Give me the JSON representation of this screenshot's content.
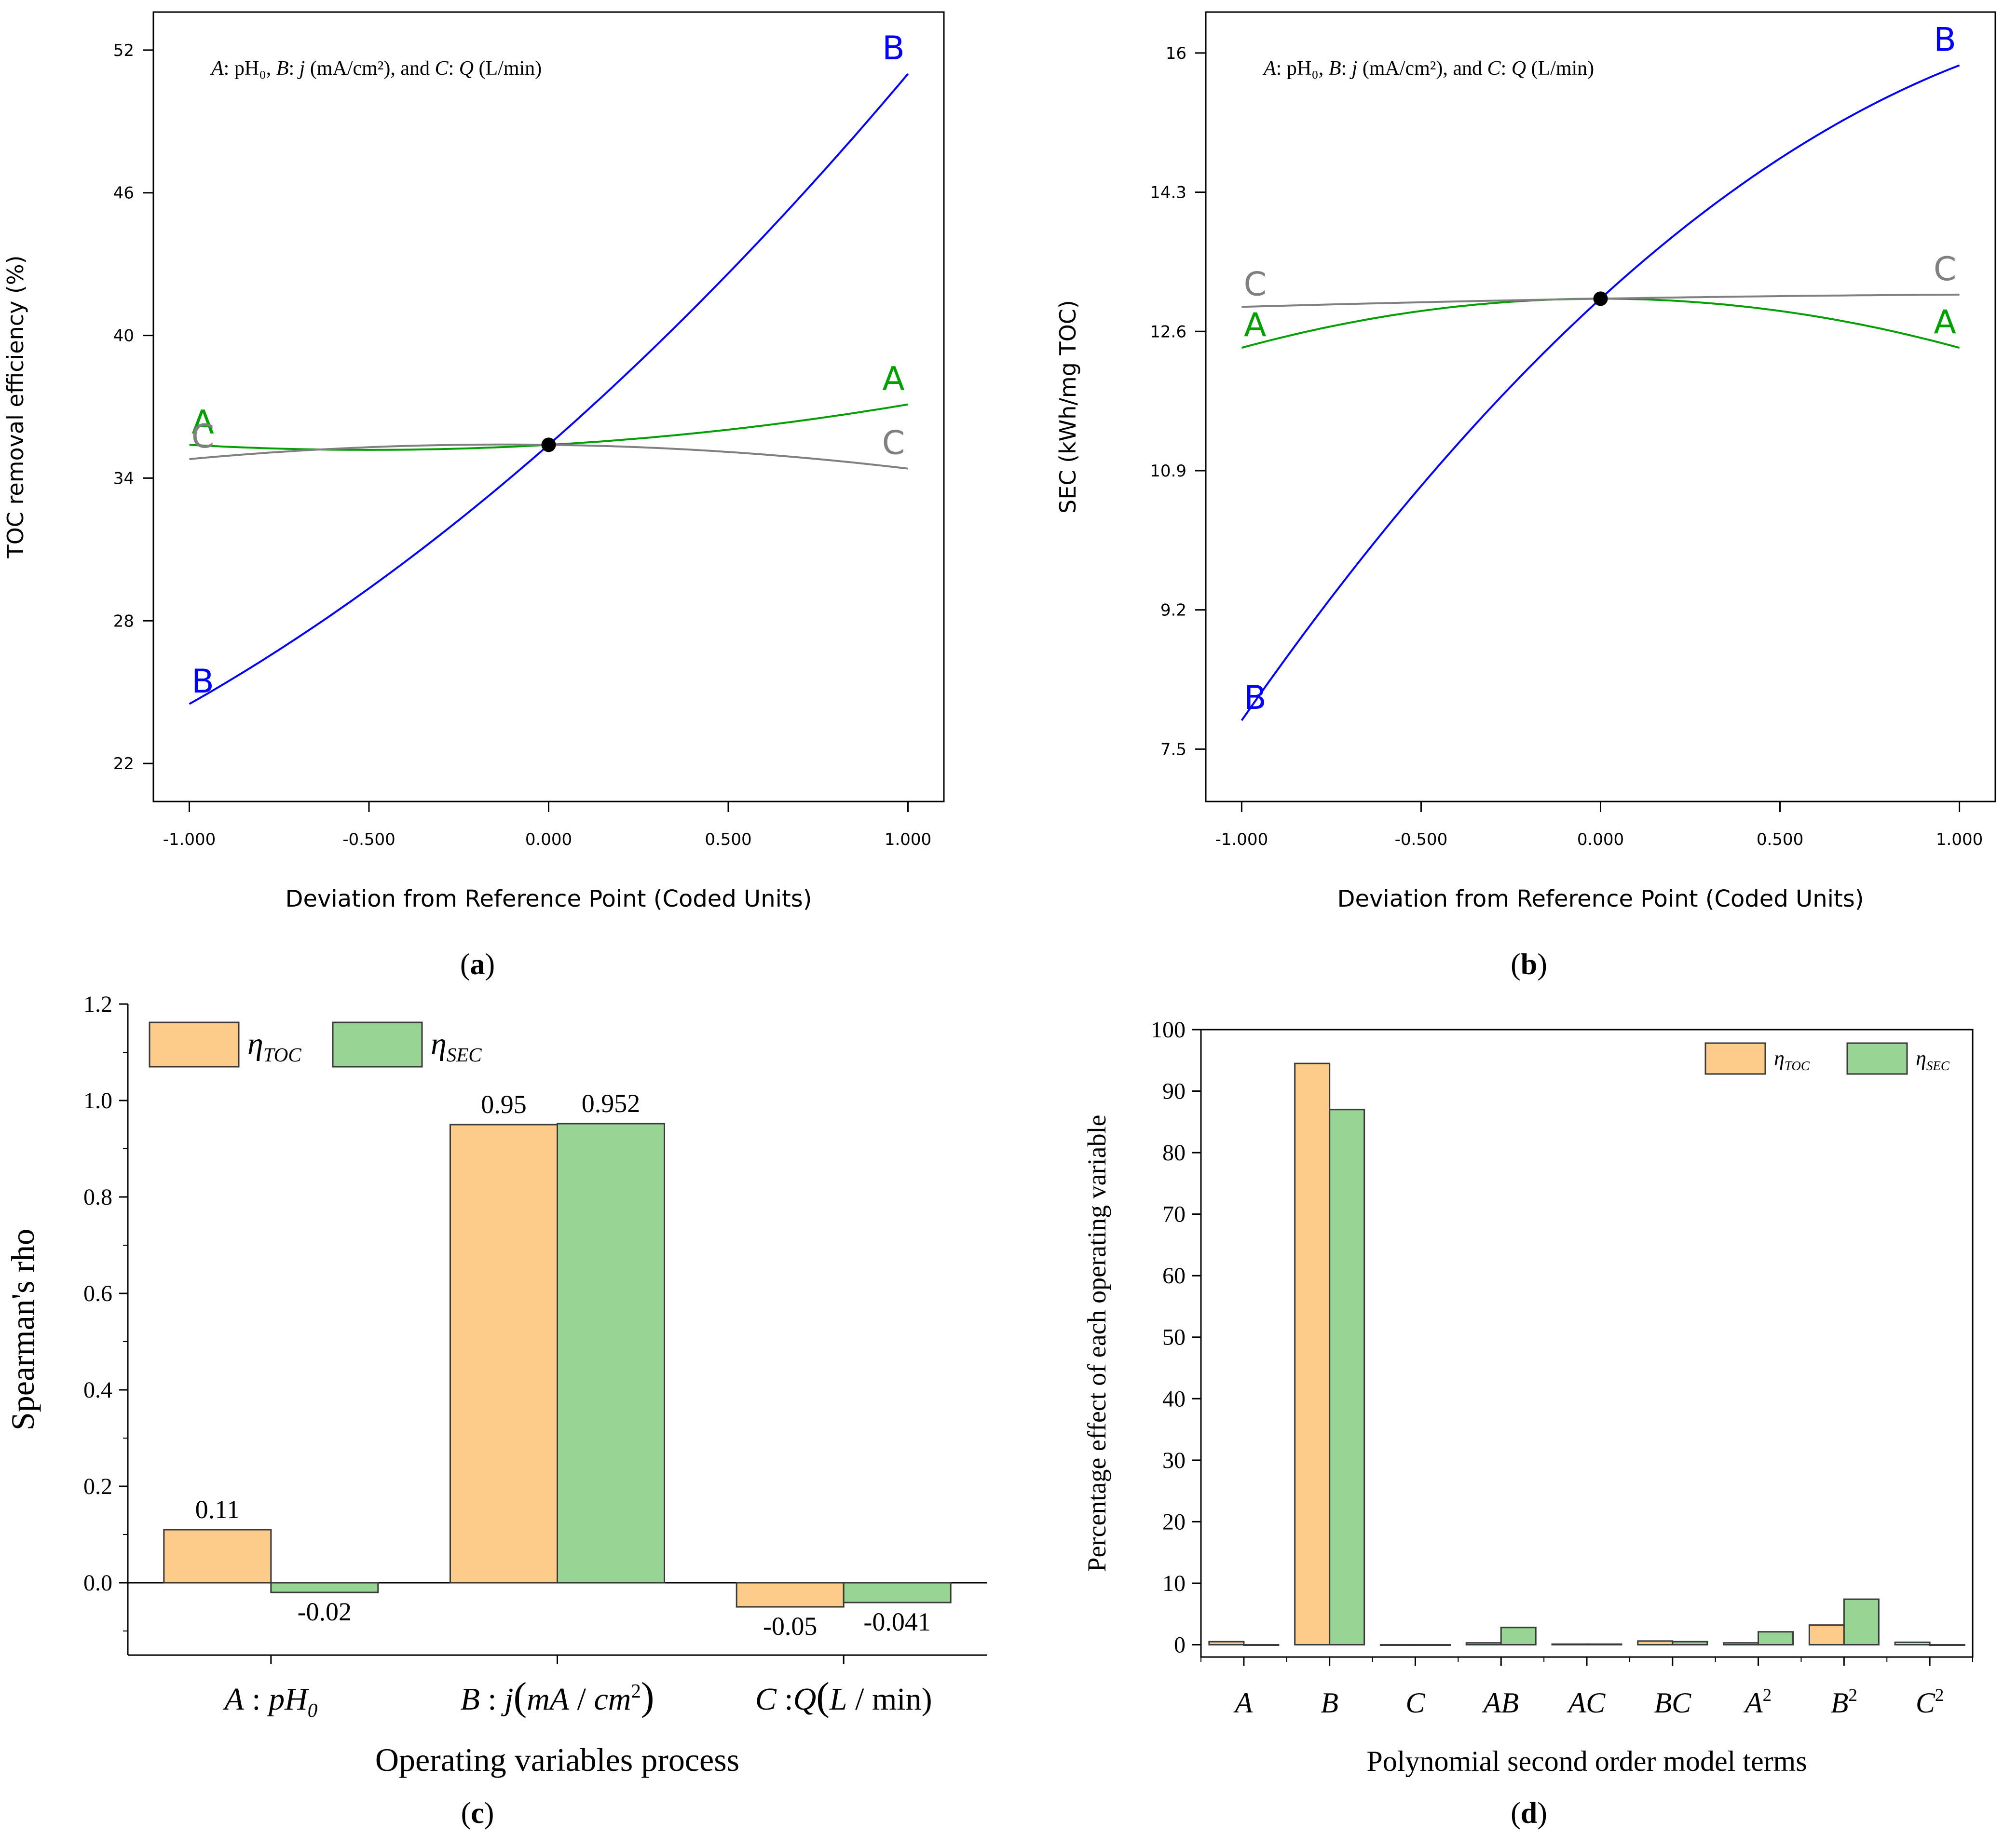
{
  "panels": {
    "a": {
      "label": "a",
      "chart_data": {
        "type": "line",
        "title": "",
        "annotation_parts": [
          "A",
          ": pH₀, ",
          "B",
          ": ",
          "j",
          " (mA/cm²), and ",
          "C",
          ": ",
          "Q",
          " (L/min)"
        ],
        "xlabel": "Deviation from Reference Point (Coded Units)",
        "ylabel": "TOC removal efficiency (%)",
        "xlim": [
          -1.1,
          1.1
        ],
        "ylim": [
          20.4,
          53.6
        ],
        "xticks": [
          -1.0,
          -0.5,
          0.0,
          0.5,
          1.0
        ],
        "xtick_labels": [
          "-1.000",
          "-0.500",
          "0.000",
          "0.500",
          "1.000"
        ],
        "yticks": [
          22,
          28,
          34,
          40,
          46,
          52
        ],
        "ytick_labels": [
          "22",
          "28",
          "34",
          "40",
          "46",
          "52"
        ],
        "reference_point": [
          0.0,
          35.4
        ],
        "series": [
          {
            "name": "A",
            "color": "#00a000",
            "x": [
              -1.0,
              -0.5,
              0.0,
              0.5,
              1.0
            ],
            "y": [
              35.4,
              35.1,
              35.4,
              36.0,
              37.1
            ]
          },
          {
            "name": "B",
            "color": "#0000ff",
            "x": [
              -1.0,
              -0.5,
              0.0,
              0.5,
              1.0
            ],
            "y": [
              24.5,
              29.4,
              35.4,
              42.6,
              51.0
            ]
          },
          {
            "name": "C",
            "color": "#808080",
            "x": [
              -1.0,
              -0.5,
              0.0,
              0.5,
              1.0
            ],
            "y": [
              34.8,
              35.3,
              35.4,
              35.2,
              34.4
            ]
          }
        ]
      }
    },
    "b": {
      "label": "b",
      "chart_data": {
        "type": "line",
        "title": "",
        "annotation_parts": [
          "A",
          ": pH₀, ",
          "B",
          ": ",
          "j",
          " (mA/cm²), and ",
          "C",
          ": ",
          "Q",
          " (L/min)"
        ],
        "xlabel": "Deviation from Reference Point (Coded Units)",
        "ylabel": "SEC (kWh/mg TOC)",
        "xlim": [
          -1.1,
          1.1
        ],
        "ylim": [
          6.86,
          16.5
        ],
        "xticks": [
          -1.0,
          -0.5,
          0.0,
          0.5,
          1.0
        ],
        "xtick_labels": [
          "-1.000",
          "-0.500",
          "0.000",
          "0.500",
          "1.000"
        ],
        "yticks": [
          7.5,
          9.2,
          10.9,
          12.6,
          14.3,
          16.0
        ],
        "ytick_labels": [
          "7.5",
          "9.2",
          "10.9",
          "12.6",
          "14.3",
          "16"
        ],
        "reference_point": [
          0.0,
          13.0
        ],
        "series": [
          {
            "name": "A",
            "color": "#00a000",
            "x": [
              -1.0,
              -0.5,
              0.0,
              0.5,
              1.0
            ],
            "y": [
              12.4,
              12.85,
              13.0,
              12.85,
              12.4
            ]
          },
          {
            "name": "B",
            "color": "#0000ff",
            "x": [
              -1.0,
              -0.5,
              0.0,
              0.5,
              1.0
            ],
            "y": [
              7.85,
              10.7,
              13.0,
              14.6,
              15.85
            ]
          },
          {
            "name": "C",
            "color": "#808080",
            "x": [
              -1.0,
              -0.5,
              0.0,
              0.5,
              1.0
            ],
            "y": [
              12.9,
              12.97,
              13.0,
              13.03,
              13.05
            ]
          }
        ]
      }
    },
    "c": {
      "label": "c",
      "chart_data": {
        "type": "bar",
        "title": "",
        "xlabel": "Operating variables process",
        "ylabel": "Spearman's rho",
        "ylim": [
          -0.15,
          1.2
        ],
        "yticks": [
          0.0,
          0.2,
          0.4,
          0.6,
          0.8,
          1.0,
          1.2
        ],
        "ytick_labels": [
          "0.0",
          "0.2",
          "0.4",
          "0.6",
          "0.8",
          "1.0",
          "1.2"
        ],
        "categories": [
          "A : pH0",
          "B : j(mA / cm2)",
          "C :Q(L / min)"
        ],
        "category_parts": [
          [
            "A",
            " : ",
            "pH",
            "0",
            ""
          ],
          [
            "B",
            " : ",
            "j",
            "(",
            "mA",
            " / ",
            "cm",
            "2",
            ")"
          ],
          [
            "C",
            " :",
            "Q",
            "(",
            "L",
            " / min)"
          ]
        ],
        "series": [
          {
            "name": "ηTOC",
            "symbol": "η",
            "sub": "TOC",
            "color": "#fdcc8a",
            "values": [
              0.11,
              0.95,
              -0.05
            ],
            "labels": [
              "0.11",
              "0.95",
              "-0.05"
            ]
          },
          {
            "name": "ηSEC",
            "symbol": "η",
            "sub": "SEC",
            "color": "#98d594",
            "values": [
              -0.02,
              0.952,
              -0.041
            ],
            "labels": [
              "-0.02",
              "0.952",
              "-0.041"
            ]
          }
        ],
        "legend": "top-left"
      }
    },
    "d": {
      "label": "d",
      "chart_data": {
        "type": "bar",
        "title": "",
        "xlabel": "Polynomial second order model terms",
        "ylabel": "Percentage effect of each operating variable",
        "ylim": [
          -2,
          100
        ],
        "yticks": [
          0,
          10,
          20,
          30,
          40,
          50,
          60,
          70,
          80,
          90,
          100
        ],
        "ytick_labels": [
          "0",
          "10",
          "20",
          "30",
          "40",
          "50",
          "60",
          "70",
          "80",
          "90",
          "100"
        ],
        "categories": [
          "A",
          "B",
          "C",
          "AB",
          "AC",
          "BC",
          "A2",
          "B2",
          "C2"
        ],
        "category_parts": [
          [
            "A",
            ""
          ],
          [
            "B",
            ""
          ],
          [
            "C",
            ""
          ],
          [
            "AB",
            ""
          ],
          [
            "AC",
            ""
          ],
          [
            "BC",
            ""
          ],
          [
            "A",
            "2"
          ],
          [
            "B",
            "2"
          ],
          [
            "C",
            "2"
          ]
        ],
        "series": [
          {
            "name": "ηTOC",
            "symbol": "η",
            "sub": "TOC",
            "color": "#fdcc8a",
            "values": [
              0.5,
              94.5,
              0.0,
              0.3,
              0.1,
              0.6,
              0.3,
              3.2,
              0.4
            ]
          },
          {
            "name": "ηSEC",
            "symbol": "η",
            "sub": "SEC",
            "color": "#98d594",
            "values": [
              0.0,
              87.0,
              0.0,
              2.8,
              0.1,
              0.5,
              2.1,
              7.4,
              0.0
            ]
          }
        ],
        "legend": "top-right"
      }
    }
  }
}
